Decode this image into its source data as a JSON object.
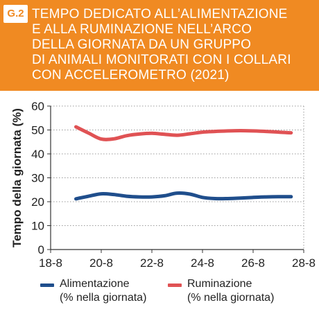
{
  "badge": "G.2",
  "title_lines": [
    "TEMPO DEDICATO ALL’ALIMENTAZIONE",
    "E ALLA RUMINAZIONE NELL’ARCO",
    "DELLA GIORNATA DA UN GRUPPO",
    "DI ANIMALI MONITORATI CON I COLLARI",
    "CON ACCELEROMETRO (2021)"
  ],
  "colors": {
    "header": "#f08a22",
    "alimentazione": "#1f4e8c",
    "ruminazione": "#e05254"
  },
  "chart_data": {
    "type": "line",
    "ylabel": "Tempo della giornata (%)",
    "xlabel": "",
    "ylim": [
      0,
      60
    ],
    "yticks": [
      0,
      10,
      20,
      30,
      40,
      50,
      60
    ],
    "xlim": [
      18,
      28
    ],
    "xticks": [
      {
        "value": 18,
        "label": "18-8"
      },
      {
        "value": 20,
        "label": "20-8"
      },
      {
        "value": 22,
        "label": "22-8"
      },
      {
        "value": 24,
        "label": "24-8"
      },
      {
        "value": 26,
        "label": "26-8"
      },
      {
        "value": 28,
        "label": "28-8"
      }
    ],
    "grid": true,
    "legend_position": "bottom",
    "series": [
      {
        "name": "Alimentazione",
        "name_sub": "(% nella giornata)",
        "color": "#1f4e8c",
        "x": [
          19,
          19.5,
          20,
          20.5,
          21,
          21.5,
          22,
          22.5,
          23,
          23.5,
          24,
          24.5,
          25,
          25.5,
          26,
          26.5,
          27,
          27.5
        ],
        "y": [
          21.2,
          22.3,
          23.3,
          23.0,
          22.3,
          22.0,
          22.0,
          22.5,
          23.6,
          23.2,
          21.8,
          21.3,
          21.3,
          21.5,
          21.8,
          22.0,
          22.1,
          22.1
        ]
      },
      {
        "name": "Ruminazione",
        "name_sub": "(% nella giornata)",
        "color": "#e05254",
        "x": [
          19,
          19.5,
          20,
          20.5,
          21,
          21.5,
          22,
          22.5,
          23,
          23.5,
          24,
          24.5,
          25,
          25.5,
          26,
          26.5,
          27,
          27.5
        ],
        "y": [
          51.3,
          48.7,
          46.2,
          46.3,
          47.6,
          48.3,
          48.6,
          48.2,
          47.8,
          48.4,
          49.1,
          49.4,
          49.6,
          49.7,
          49.6,
          49.4,
          49.1,
          48.8
        ]
      }
    ]
  }
}
